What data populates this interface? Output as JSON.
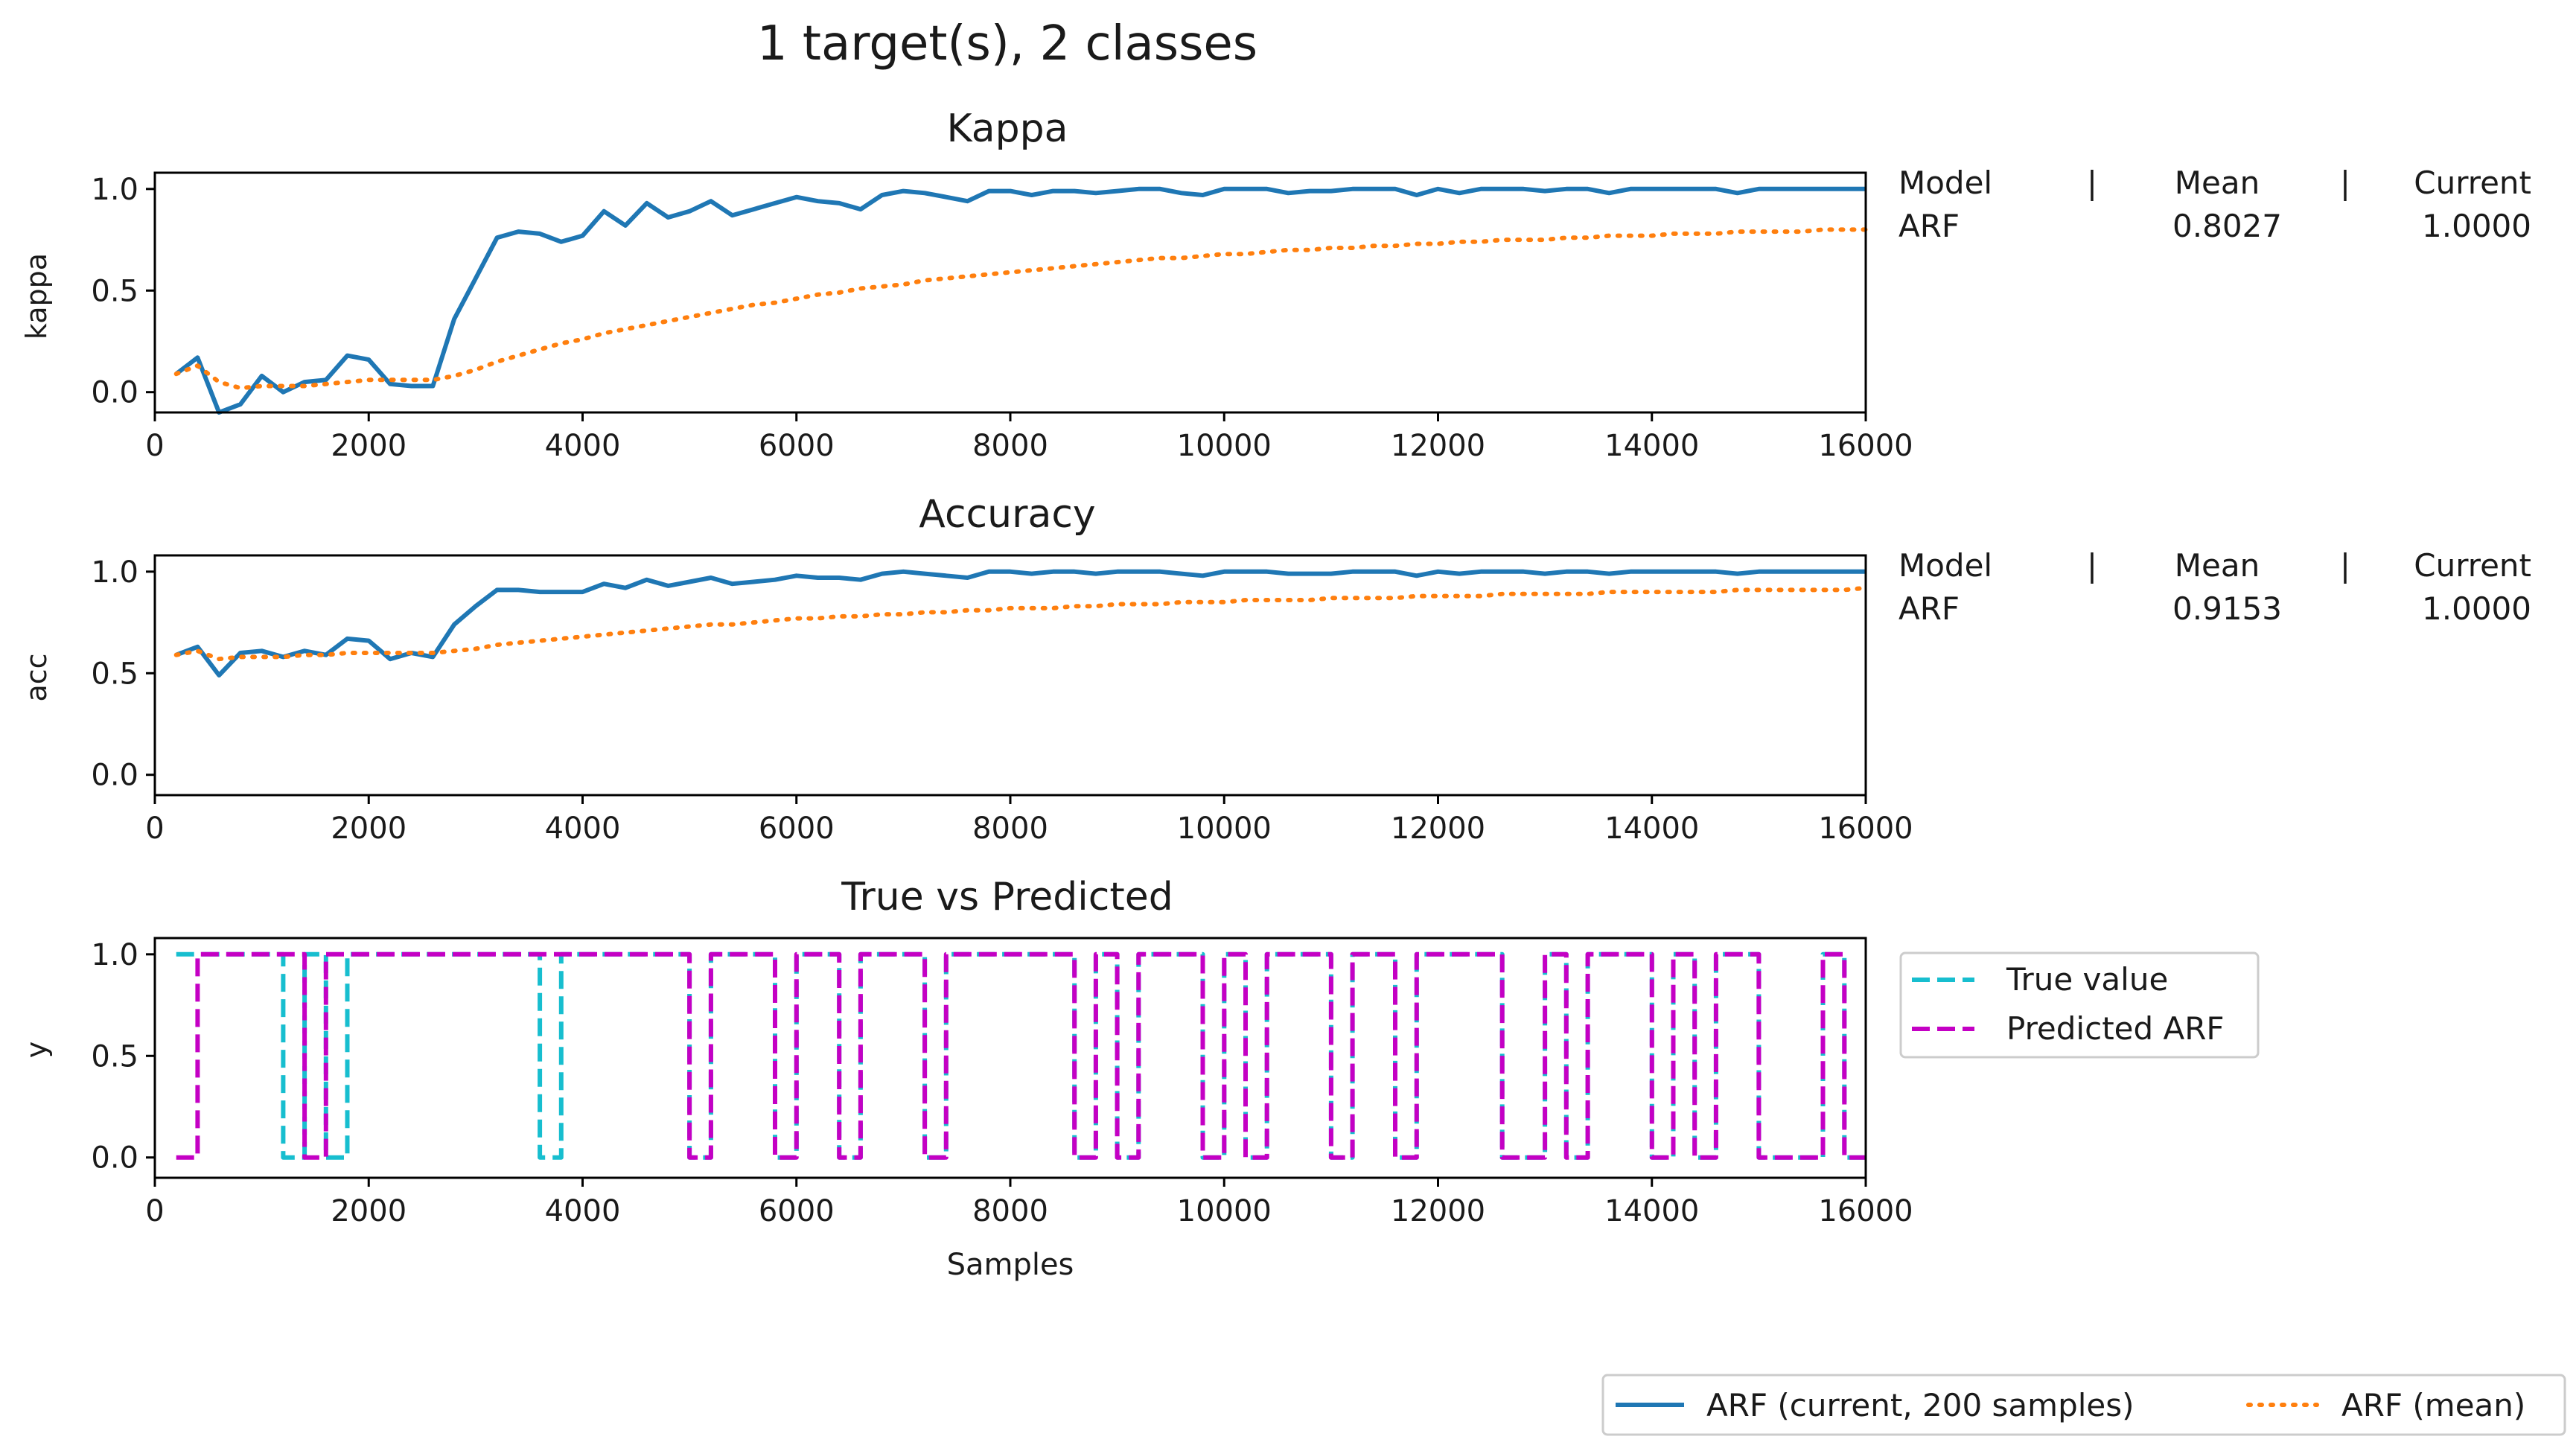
{
  "figure_title": "1 target(s), 2 classes",
  "colors": {
    "current": "#1f77b4",
    "mean": "#ff7f0e",
    "true": "#17becf",
    "predicted": "#c400c4",
    "axes": "#000000"
  },
  "x_ticks": [
    "0",
    "2000",
    "4000",
    "6000",
    "8000",
    "10000",
    "12000",
    "14000",
    "16000"
  ],
  "y_ticks": [
    "0.0",
    "0.5",
    "1.0"
  ],
  "chart_data": [
    {
      "id": "kappa",
      "type": "line",
      "title": "Kappa",
      "xlabel": "",
      "ylabel": "kappa",
      "xlim": [
        0,
        16000
      ],
      "ylim": [
        -0.1,
        1.08
      ],
      "x": [
        200,
        400,
        600,
        800,
        1000,
        1200,
        1400,
        1600,
        1800,
        2000,
        2200,
        2400,
        2600,
        2800,
        3000,
        3200,
        3400,
        3600,
        3800,
        4000,
        4200,
        4400,
        4600,
        4800,
        5000,
        5200,
        5400,
        5600,
        5800,
        6000,
        6200,
        6400,
        6600,
        6800,
        7000,
        7200,
        7400,
        7600,
        7800,
        8000,
        8200,
        8400,
        8600,
        8800,
        9000,
        9200,
        9400,
        9600,
        9800,
        10000,
        10200,
        10400,
        10600,
        10800,
        11000,
        11200,
        11400,
        11600,
        11800,
        12000,
        12200,
        12400,
        12600,
        12800,
        13000,
        13200,
        13400,
        13600,
        13800,
        14000,
        14200,
        14400,
        14600,
        14800,
        15000,
        15200,
        15400,
        15600,
        15800,
        16000
      ],
      "series": [
        {
          "name": "ARF  (current, 200 samples)",
          "style": "solid",
          "values": [
            0.09,
            0.17,
            -0.1,
            -0.06,
            0.08,
            0.0,
            0.05,
            0.06,
            0.18,
            0.16,
            0.04,
            0.03,
            0.03,
            0.36,
            0.56,
            0.76,
            0.79,
            0.78,
            0.74,
            0.77,
            0.89,
            0.82,
            0.93,
            0.86,
            0.89,
            0.94,
            0.87,
            0.9,
            0.93,
            0.96,
            0.94,
            0.93,
            0.9,
            0.97,
            0.99,
            0.98,
            0.96,
            0.94,
            0.99,
            0.99,
            0.97,
            0.99,
            0.99,
            0.98,
            0.99,
            1.0,
            1.0,
            0.98,
            0.97,
            1.0,
            1.0,
            1.0,
            0.98,
            0.99,
            0.99,
            1.0,
            1.0,
            1.0,
            0.97,
            1.0,
            0.98,
            1.0,
            1.0,
            1.0,
            0.99,
            1.0,
            1.0,
            0.98,
            1.0,
            1.0,
            1.0,
            1.0,
            1.0,
            0.98,
            1.0,
            1.0,
            1.0,
            1.0,
            1.0,
            1.0
          ]
        },
        {
          "name": "ARF (mean)",
          "style": "dotted",
          "values": [
            0.09,
            0.13,
            0.05,
            0.02,
            0.03,
            0.03,
            0.03,
            0.04,
            0.05,
            0.06,
            0.06,
            0.06,
            0.06,
            0.08,
            0.11,
            0.15,
            0.18,
            0.21,
            0.24,
            0.26,
            0.29,
            0.31,
            0.33,
            0.35,
            0.37,
            0.39,
            0.41,
            0.43,
            0.44,
            0.46,
            0.48,
            0.49,
            0.51,
            0.52,
            0.53,
            0.55,
            0.56,
            0.57,
            0.58,
            0.59,
            0.6,
            0.61,
            0.62,
            0.63,
            0.64,
            0.65,
            0.66,
            0.66,
            0.67,
            0.68,
            0.68,
            0.69,
            0.7,
            0.7,
            0.71,
            0.71,
            0.72,
            0.72,
            0.73,
            0.73,
            0.74,
            0.74,
            0.75,
            0.75,
            0.75,
            0.76,
            0.76,
            0.77,
            0.77,
            0.77,
            0.78,
            0.78,
            0.78,
            0.79,
            0.79,
            0.79,
            0.79,
            0.8,
            0.8,
            0.8
          ]
        }
      ],
      "table": {
        "headers": [
          "Model",
          "|",
          "Mean",
          "|",
          "Current"
        ],
        "row": [
          "ARF",
          "0.8027",
          "1.0000"
        ]
      }
    },
    {
      "id": "accuracy",
      "type": "line",
      "title": "Accuracy",
      "xlabel": "",
      "ylabel": "acc",
      "xlim": [
        0,
        16000
      ],
      "ylim": [
        -0.1,
        1.08
      ],
      "x": [
        200,
        400,
        600,
        800,
        1000,
        1200,
        1400,
        1600,
        1800,
        2000,
        2200,
        2400,
        2600,
        2800,
        3000,
        3200,
        3400,
        3600,
        3800,
        4000,
        4200,
        4400,
        4600,
        4800,
        5000,
        5200,
        5400,
        5600,
        5800,
        6000,
        6200,
        6400,
        6600,
        6800,
        7000,
        7200,
        7400,
        7600,
        7800,
        8000,
        8200,
        8400,
        8600,
        8800,
        9000,
        9200,
        9400,
        9600,
        9800,
        10000,
        10200,
        10400,
        10600,
        10800,
        11000,
        11200,
        11400,
        11600,
        11800,
        12000,
        12200,
        12400,
        12600,
        12800,
        13000,
        13200,
        13400,
        13600,
        13800,
        14000,
        14200,
        14400,
        14600,
        14800,
        15000,
        15200,
        15400,
        15600,
        15800,
        16000
      ],
      "series": [
        {
          "name": "ARF  (current, 200 samples)",
          "style": "solid",
          "values": [
            0.59,
            0.63,
            0.49,
            0.6,
            0.61,
            0.58,
            0.61,
            0.59,
            0.67,
            0.66,
            0.57,
            0.6,
            0.58,
            0.74,
            0.83,
            0.91,
            0.91,
            0.9,
            0.9,
            0.9,
            0.94,
            0.92,
            0.96,
            0.93,
            0.95,
            0.97,
            0.94,
            0.95,
            0.96,
            0.98,
            0.97,
            0.97,
            0.96,
            0.99,
            1.0,
            0.99,
            0.98,
            0.97,
            1.0,
            1.0,
            0.99,
            1.0,
            1.0,
            0.99,
            1.0,
            1.0,
            1.0,
            0.99,
            0.98,
            1.0,
            1.0,
            1.0,
            0.99,
            0.99,
            0.99,
            1.0,
            1.0,
            1.0,
            0.98,
            1.0,
            0.99,
            1.0,
            1.0,
            1.0,
            0.99,
            1.0,
            1.0,
            0.99,
            1.0,
            1.0,
            1.0,
            1.0,
            1.0,
            0.99,
            1.0,
            1.0,
            1.0,
            1.0,
            1.0,
            1.0
          ]
        },
        {
          "name": "ARF (mean)",
          "style": "dotted",
          "values": [
            0.59,
            0.61,
            0.57,
            0.58,
            0.58,
            0.58,
            0.59,
            0.59,
            0.6,
            0.6,
            0.6,
            0.6,
            0.6,
            0.61,
            0.62,
            0.64,
            0.65,
            0.66,
            0.67,
            0.68,
            0.69,
            0.7,
            0.71,
            0.72,
            0.73,
            0.74,
            0.74,
            0.75,
            0.76,
            0.77,
            0.77,
            0.78,
            0.78,
            0.79,
            0.79,
            0.8,
            0.8,
            0.81,
            0.81,
            0.82,
            0.82,
            0.82,
            0.83,
            0.83,
            0.84,
            0.84,
            0.84,
            0.85,
            0.85,
            0.85,
            0.86,
            0.86,
            0.86,
            0.86,
            0.87,
            0.87,
            0.87,
            0.87,
            0.88,
            0.88,
            0.88,
            0.88,
            0.89,
            0.89,
            0.89,
            0.89,
            0.89,
            0.9,
            0.9,
            0.9,
            0.9,
            0.9,
            0.9,
            0.91,
            0.91,
            0.91,
            0.91,
            0.91,
            0.91,
            0.92
          ]
        }
      ],
      "table": {
        "headers": [
          "Model",
          "|",
          "Mean",
          "|",
          "Current"
        ],
        "row": [
          "ARF",
          "0.9153",
          "1.0000"
        ]
      }
    },
    {
      "id": "true_vs_predicted",
      "type": "line",
      "title": "True vs Predicted",
      "xlabel": "Samples",
      "ylabel": "y",
      "xlim": [
        0,
        16000
      ],
      "ylim": [
        -0.1,
        1.08
      ],
      "series": [
        {
          "name": "True value",
          "style": "dashed",
          "steps": [
            [
              200,
              1
            ],
            [
              1200,
              0
            ],
            [
              1400,
              1
            ],
            [
              1600,
              0
            ],
            [
              1800,
              1
            ],
            [
              3600,
              0
            ],
            [
              3800,
              1
            ],
            [
              5000,
              0
            ],
            [
              5200,
              1
            ],
            [
              5800,
              0
            ],
            [
              6000,
              1
            ],
            [
              6400,
              0
            ],
            [
              6600,
              1
            ],
            [
              7200,
              0
            ],
            [
              7400,
              1
            ],
            [
              8600,
              0
            ],
            [
              8800,
              1
            ],
            [
              9000,
              0
            ],
            [
              9200,
              1
            ],
            [
              9800,
              0
            ],
            [
              10000,
              1
            ],
            [
              10200,
              0
            ],
            [
              10400,
              1
            ],
            [
              11000,
              0
            ],
            [
              11200,
              1
            ],
            [
              11600,
              0
            ],
            [
              11800,
              1
            ],
            [
              12600,
              0
            ],
            [
              13000,
              1
            ],
            [
              13200,
              0
            ],
            [
              13400,
              1
            ],
            [
              14000,
              0
            ],
            [
              14200,
              1
            ],
            [
              14400,
              0
            ],
            [
              14600,
              1
            ],
            [
              15000,
              0
            ],
            [
              15600,
              1
            ],
            [
              15800,
              0
            ],
            [
              16000,
              0
            ]
          ]
        },
        {
          "name": "Predicted ARF",
          "style": "dashed",
          "steps": [
            [
              200,
              0
            ],
            [
              400,
              1
            ],
            [
              1400,
              0
            ],
            [
              1600,
              1
            ],
            [
              5000,
              0
            ],
            [
              5200,
              1
            ],
            [
              5800,
              0
            ],
            [
              6000,
              1
            ],
            [
              6400,
              0
            ],
            [
              6600,
              1
            ],
            [
              7200,
              0
            ],
            [
              7400,
              1
            ],
            [
              8600,
              0
            ],
            [
              8800,
              1
            ],
            [
              9000,
              0
            ],
            [
              9200,
              1
            ],
            [
              9800,
              0
            ],
            [
              10000,
              1
            ],
            [
              10200,
              0
            ],
            [
              10400,
              1
            ],
            [
              11000,
              0
            ],
            [
              11200,
              1
            ],
            [
              11600,
              0
            ],
            [
              11800,
              1
            ],
            [
              12600,
              0
            ],
            [
              13000,
              1
            ],
            [
              13200,
              0
            ],
            [
              13400,
              1
            ],
            [
              14000,
              0
            ],
            [
              14200,
              1
            ],
            [
              14400,
              0
            ],
            [
              14600,
              1
            ],
            [
              15000,
              0
            ],
            [
              15600,
              1
            ],
            [
              15800,
              0
            ],
            [
              16000,
              0
            ]
          ]
        }
      ],
      "legend": [
        "True value",
        "Predicted ARF"
      ]
    }
  ],
  "bottom_legend": [
    "ARF  (current, 200 samples)",
    "ARF (mean)"
  ]
}
